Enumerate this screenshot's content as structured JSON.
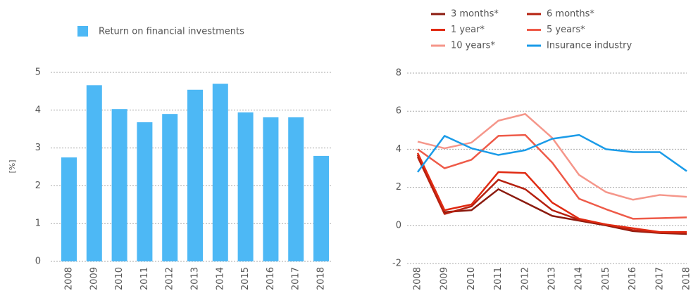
{
  "chart_data": [
    {
      "type": "bar",
      "ylabel": "[%]",
      "categories": [
        "2008",
        "2009",
        "2010",
        "2011",
        "2012",
        "2013",
        "2014",
        "2015",
        "2016",
        "2017",
        "2018"
      ],
      "series": [
        {
          "name": "Return on financial investments",
          "color": "#4db8f5",
          "values": [
            2.75,
            4.66,
            4.03,
            3.68,
            3.9,
            4.54,
            4.7,
            3.94,
            3.81,
            3.81,
            2.79
          ]
        }
      ],
      "ylim": [
        0,
        5
      ],
      "yticks": [
        0,
        1,
        2,
        3,
        4,
        5
      ],
      "grid": true
    },
    {
      "type": "line",
      "categories": [
        "2008",
        "2009",
        "2010",
        "2011",
        "2012",
        "2013",
        "2014",
        "2015",
        "2016",
        "2017",
        "2018"
      ],
      "series": [
        {
          "name": "3 months*",
          "color": "#8b1a0e",
          "values": [
            3.7,
            0.7,
            0.8,
            1.9,
            1.2,
            0.5,
            0.25,
            0.0,
            -0.3,
            -0.4,
            -0.45
          ]
        },
        {
          "name": "6 months*",
          "color": "#b5200f",
          "values": [
            3.6,
            0.6,
            1.0,
            2.4,
            1.9,
            0.8,
            0.3,
            0.05,
            -0.25,
            -0.38,
            -0.4
          ]
        },
        {
          "name": "1 year*",
          "color": "#e02a12",
          "values": [
            3.8,
            0.8,
            1.1,
            2.8,
            2.75,
            1.2,
            0.35,
            0.05,
            -0.15,
            -0.35,
            -0.35
          ]
        },
        {
          "name": "5 years*",
          "color": "#ee5a48",
          "values": [
            4.0,
            3.0,
            3.45,
            4.7,
            4.75,
            3.3,
            1.4,
            0.85,
            0.35,
            0.38,
            0.42
          ]
        },
        {
          "name": "10 years*",
          "color": "#f5968a",
          "values": [
            4.4,
            4.05,
            4.35,
            5.5,
            5.85,
            4.6,
            2.65,
            1.75,
            1.35,
            1.6,
            1.5
          ]
        },
        {
          "name": "Insurance industry",
          "color": "#1a9be8",
          "values": [
            2.8,
            4.7,
            4.05,
            3.7,
            3.95,
            4.55,
            4.75,
            4.0,
            3.85,
            3.85,
            2.85
          ]
        }
      ],
      "ylim": [
        -2,
        8
      ],
      "yticks": [
        -2,
        0,
        2,
        4,
        6,
        8
      ],
      "grid": true
    }
  ]
}
